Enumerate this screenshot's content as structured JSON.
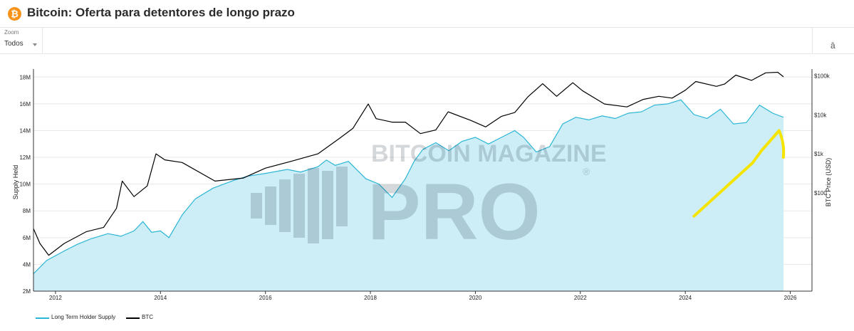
{
  "header": {
    "title": "Bitcoin: Oferta para detentores de longo prazo",
    "logo_icon": "bitcoin-logo-icon",
    "logo_glyph": "₿"
  },
  "toolbar": {
    "zoom_label": "Zoom",
    "zoom_value": "Todos",
    "menu_glyph": "â"
  },
  "watermark": {
    "line1": "BITCOIN MAGAZINE",
    "line2": "PRO",
    "registered": "®"
  },
  "colors": {
    "supply": "#2bb5d6",
    "supply_fill": "#cdeef7",
    "btc": "#000000",
    "annotation": "#f5e400"
  },
  "chart_data": {
    "type": "area",
    "xlabel": "",
    "ylabel": "Supply Held",
    "y2label": "BTC Price (USD)",
    "y2scale": "log",
    "x_ticks": [
      "2012",
      "2014",
      "2016",
      "2018",
      "2020",
      "2022",
      "2024",
      "2026"
    ],
    "xlim": [
      "2011-08-01",
      "2026-06-01"
    ],
    "y_ticks": [
      "2M",
      "4M",
      "6M",
      "8M",
      "10M",
      "12M",
      "14M",
      "16M",
      "18M"
    ],
    "ylim": [
      2000000,
      18600000
    ],
    "y2_ticks": [
      "$100",
      "$1k",
      "$10k",
      "$100k"
    ],
    "y2lim": [
      0.3,
      150000
    ],
    "legend_position": "bottom-left",
    "grid": "horizontal",
    "series": [
      {
        "name": "Long Term Holder Supply",
        "kind": "area",
        "x": [
          "2011-08-01",
          "2011-11-01",
          "2012-03-01",
          "2012-06-01",
          "2012-09-01",
          "2013-01-01",
          "2013-04-01",
          "2013-07-01",
          "2013-09-01",
          "2013-11-01",
          "2014-01-01",
          "2014-03-01",
          "2014-06-01",
          "2014-09-01",
          "2015-01-01",
          "2015-06-01",
          "2015-09-01",
          "2016-01-01",
          "2016-06-01",
          "2016-09-01",
          "2017-01-01",
          "2017-03-01",
          "2017-05-01",
          "2017-08-01",
          "2017-12-01",
          "2018-03-01",
          "2018-06-01",
          "2018-09-01",
          "2018-11-01",
          "2019-01-01",
          "2019-04-01",
          "2019-07-01",
          "2019-10-01",
          "2020-01-01",
          "2020-04-01",
          "2020-07-01",
          "2020-10-01",
          "2020-12-01",
          "2021-03-01",
          "2021-06-01",
          "2021-09-01",
          "2021-12-01",
          "2022-03-01",
          "2022-06-01",
          "2022-09-01",
          "2022-12-01",
          "2023-03-01",
          "2023-06-01",
          "2023-09-01",
          "2023-12-01",
          "2024-03-01",
          "2024-06-01",
          "2024-09-01",
          "2024-12-01",
          "2025-03-01",
          "2025-06-01",
          "2025-09-01",
          "2025-11-15"
        ],
        "values": [
          3300000,
          4300000,
          5000000,
          5500000,
          5900000,
          6300000,
          6100000,
          6500000,
          7200000,
          6400000,
          6500000,
          6000000,
          7700000,
          8900000,
          9700000,
          10300000,
          10600000,
          10800000,
          11100000,
          10900000,
          11300000,
          11800000,
          11400000,
          11700000,
          10400000,
          10000000,
          9000000,
          10400000,
          11700000,
          12600000,
          13100000,
          12500000,
          13200000,
          13500000,
          13000000,
          13500000,
          14000000,
          13500000,
          12400000,
          12800000,
          14500000,
          15000000,
          14800000,
          15100000,
          14900000,
          15300000,
          15400000,
          15900000,
          16000000,
          16300000,
          15200000,
          14900000,
          15600000,
          14500000,
          14600000,
          15900000,
          15300000,
          15000000
        ]
      },
      {
        "name": "BTC",
        "kind": "line",
        "x": [
          "2011-08-01",
          "2011-09-15",
          "2011-11-15",
          "2012-03-01",
          "2012-08-01",
          "2012-12-01",
          "2013-03-01",
          "2013-04-10",
          "2013-07-01",
          "2013-10-01",
          "2013-12-01",
          "2014-02-01",
          "2014-06-01",
          "2015-01-15",
          "2015-08-01",
          "2016-01-01",
          "2016-07-01",
          "2017-01-01",
          "2017-06-01",
          "2017-09-01",
          "2017-12-17",
          "2018-02-10",
          "2018-06-01",
          "2018-09-01",
          "2018-12-15",
          "2019-04-01",
          "2019-06-26",
          "2019-12-01",
          "2020-03-13",
          "2020-07-01",
          "2020-10-01",
          "2021-01-01",
          "2021-04-14",
          "2021-07-20",
          "2021-11-10",
          "2022-01-15",
          "2022-06-18",
          "2022-11-21",
          "2023-03-15",
          "2023-07-01",
          "2023-10-01",
          "2024-01-01",
          "2024-03-14",
          "2024-08-05",
          "2024-10-01",
          "2024-12-17",
          "2025-04-07",
          "2025-07-14",
          "2025-10-06",
          "2025-11-15"
        ],
        "values": [
          12,
          5,
          2.5,
          5,
          10,
          13,
          40,
          200,
          80,
          150,
          1000,
          700,
          600,
          200,
          240,
          430,
          650,
          1000,
          2500,
          4500,
          19000,
          8000,
          6500,
          6500,
          3300,
          4100,
          12000,
          7200,
          4900,
          9200,
          11500,
          29000,
          63000,
          30000,
          67000,
          42000,
          19000,
          16000,
          25000,
          30000,
          27000,
          43000,
          72000,
          54000,
          62000,
          105000,
          77000,
          120000,
          124000,
          95000
        ]
      }
    ]
  },
  "annotation": {
    "type": "hand-drawn arrow",
    "x": [
      "2024-03-01",
      "2025-04-15",
      "2025-06-15",
      "2025-10-15"
    ],
    "values": [
      7600000,
      11600000,
      12500000,
      14000000
    ],
    "head_end": 12000000
  }
}
